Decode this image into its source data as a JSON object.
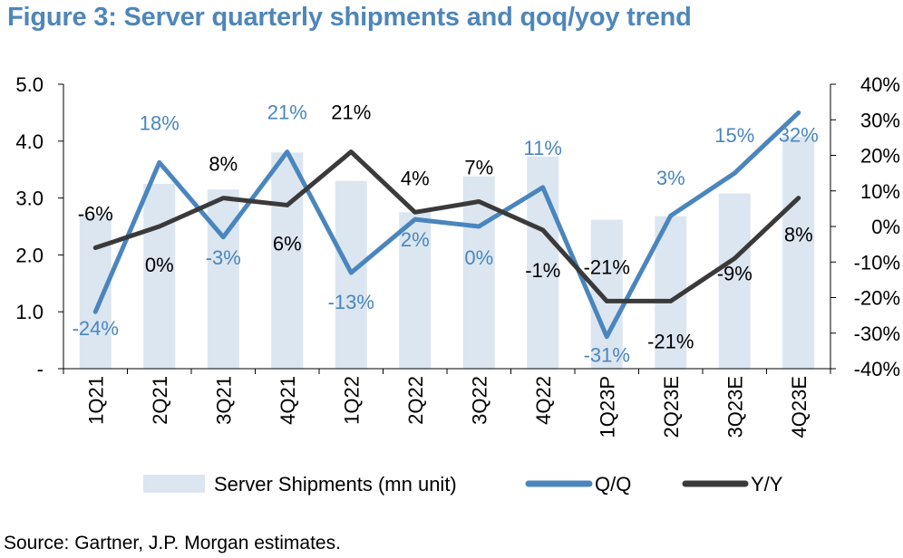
{
  "title": "Figure 3: Server quarterly shipments and qoq/yoy trend",
  "source": "Source: Gartner, J.P. Morgan estimates.",
  "colors": {
    "title": "#4f86b9",
    "bars": "#dce6f1",
    "qoq": "#4a86bd",
    "yoy": "#3a3a3a"
  },
  "chart_data": {
    "type": "bar",
    "categories": [
      "1Q21",
      "2Q21",
      "3Q21",
      "4Q21",
      "1Q22",
      "2Q22",
      "3Q22",
      "4Q22",
      "1Q23P",
      "2Q23E",
      "3Q23E",
      "4Q23E"
    ],
    "series": [
      {
        "name": "Server Shipments (mn unit)",
        "type": "bar",
        "axis": "left",
        "values": [
          2.7,
          3.25,
          3.15,
          3.8,
          3.3,
          2.75,
          3.38,
          3.73,
          2.62,
          2.68,
          3.08,
          4.08
        ]
      },
      {
        "name": "Q/Q",
        "type": "line",
        "axis": "right",
        "values": [
          -24,
          18,
          -3,
          21,
          -13,
          2,
          0,
          11,
          -31,
          3,
          15,
          32
        ],
        "labels": [
          "-24%",
          "18%",
          "-3%",
          "21%",
          "-13%",
          "2%",
          "0%",
          "11%",
          "-31%",
          "3%",
          "15%",
          "32%"
        ]
      },
      {
        "name": "Y/Y",
        "type": "line",
        "axis": "right",
        "values": [
          -6,
          0,
          8,
          6,
          21,
          4,
          7,
          -1,
          -21,
          -21,
          -9,
          8
        ],
        "labels": [
          "-6%",
          "0%",
          "8%",
          "6%",
          "21%",
          "4%",
          "7%",
          "-1%",
          "-21%",
          "-21%",
          "-9%",
          "8%"
        ]
      }
    ],
    "y_left": {
      "range": [
        0,
        5
      ],
      "ticks": [
        "-",
        "1.0",
        "2.0",
        "3.0",
        "4.0",
        "5.0"
      ]
    },
    "y_right": {
      "range": [
        -40,
        40
      ],
      "ticks": [
        "-40%",
        "-30%",
        "-20%",
        "-10%",
        "0%",
        "10%",
        "20%",
        "30%",
        "40%"
      ]
    },
    "legend": "bottom",
    "grid": false
  }
}
